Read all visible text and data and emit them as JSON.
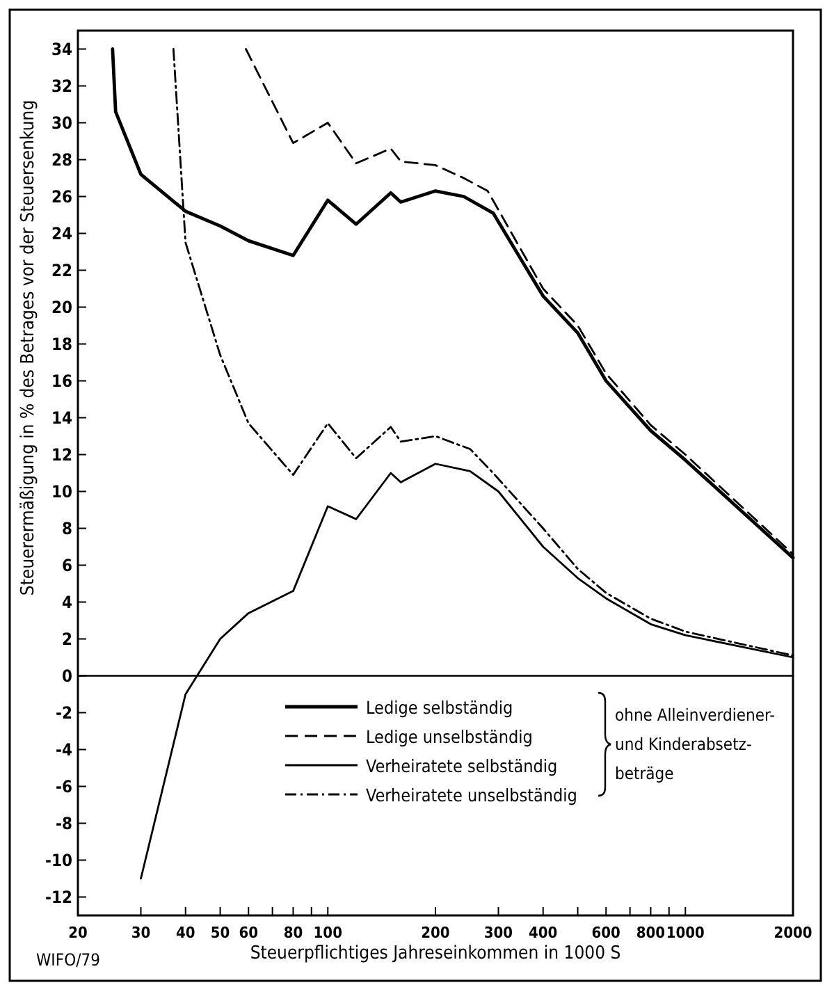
{
  "chart_data": {
    "type": "line",
    "ylabel": "Steuerermäßigung in % des Betrages vor der Steuersenkung",
    "xlabel": "Steuerpflichtiges Jahreseinkommen in 1000 S",
    "log": "x",
    "xlim": [
      20,
      2000
    ],
    "ylim": [
      -13,
      35
    ],
    "xticks": [
      20,
      30,
      40,
      50,
      60,
      {
        "value": 70,
        "label": null
      },
      80,
      {
        "value": 90,
        "label": null
      },
      100,
      200,
      300,
      400,
      {
        "value": 500,
        "label": null
      },
      600,
      {
        "value": 700,
        "label": null
      },
      800,
      {
        "value": 900,
        "label": null
      },
      1000,
      2000
    ],
    "yticks": [
      -12,
      -10,
      -8,
      -6,
      -4,
      -2,
      0,
      2,
      4,
      6,
      8,
      10,
      12,
      14,
      16,
      18,
      20,
      22,
      24,
      26,
      28,
      30,
      32,
      34
    ],
    "grid": false,
    "legend": "bottom",
    "ref_lines": [
      {
        "axis": "y",
        "value": 0,
        "color": "#000000"
      }
    ],
    "series": [
      {
        "name": "Ledige selbständig",
        "color": "#000000",
        "line_style": "solid",
        "x": [
          25,
          25.5,
          30,
          40,
          50,
          60,
          80,
          100,
          120,
          150,
          160,
          200,
          240,
          290,
          400,
          500,
          600,
          800,
          1000,
          2000
        ],
        "values": [
          34,
          30.6,
          27.2,
          25.2,
          24.4,
          23.6,
          22.8,
          25.8,
          24.5,
          26.2,
          25.7,
          26.3,
          26,
          25.1,
          20.6,
          18.6,
          16,
          13.3,
          11.7,
          6.4
        ]
      },
      {
        "name": "Ledige unselbständig",
        "color": "#000000",
        "line_style": "dashed",
        "x": [
          59,
          80,
          100,
          120,
          150,
          160,
          200,
          240,
          280,
          400,
          500,
          600,
          800,
          1000,
          2000
        ],
        "values": [
          34,
          28.9,
          30,
          27.8,
          28.6,
          27.9,
          27.7,
          27,
          26.3,
          21,
          19,
          16.4,
          13.6,
          12,
          6.6
        ]
      },
      {
        "name": "Verheiratete selbständig",
        "color": "#000000",
        "line_style": "solid",
        "x": [
          30,
          40,
          50,
          60,
          80,
          100,
          120,
          150,
          160,
          200,
          250,
          300,
          400,
          500,
          600,
          800,
          1000,
          2000
        ],
        "values": [
          -11,
          -1,
          2,
          3.4,
          4.6,
          9.2,
          8.5,
          11,
          10.5,
          11.5,
          11.1,
          10,
          7,
          5.3,
          4.2,
          2.8,
          2.2,
          1
        ]
      },
      {
        "name": "Verheiratete unselbständig",
        "color": "#000000",
        "line_style": "dotted",
        "x": [
          37,
          40,
          50,
          60,
          80,
          100,
          120,
          150,
          160,
          200,
          250,
          290,
          400,
          500,
          600,
          800,
          1000,
          2000
        ],
        "values": [
          34,
          23.5,
          17.4,
          13.7,
          10.9,
          13.7,
          11.8,
          13.5,
          12.7,
          13,
          12.3,
          11,
          8,
          5.8,
          4.5,
          3.1,
          2.4,
          1.1
        ]
      }
    ],
    "annotations": [
      "ohne Alleinverdiener-\nund Kinderabsetz-\nbeträge",
      "WIFO/79"
    ]
  }
}
